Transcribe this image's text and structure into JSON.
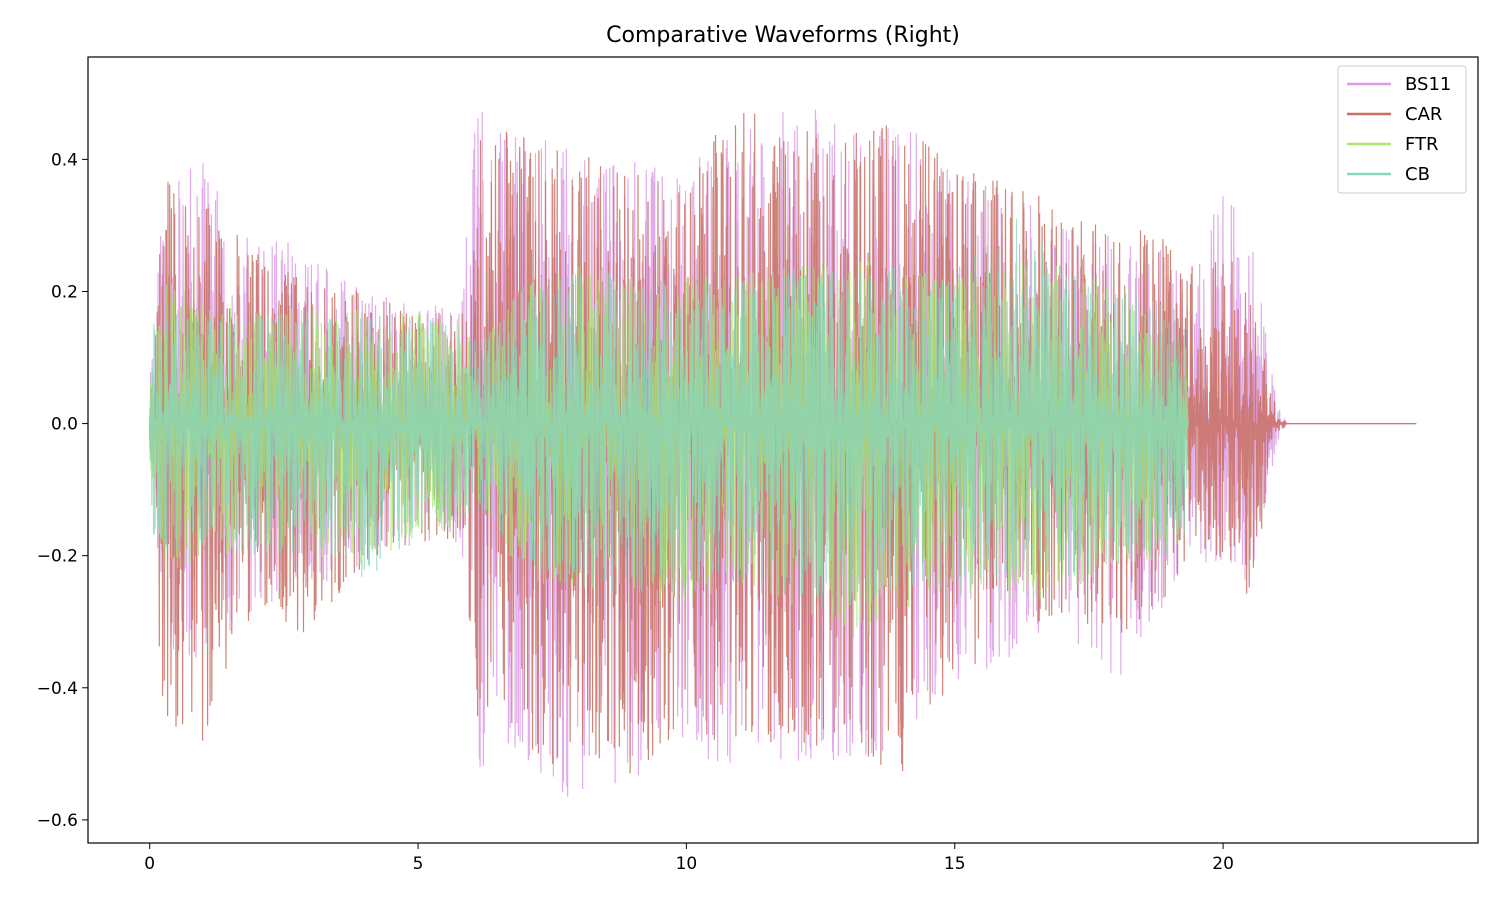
{
  "chart_data": {
    "type": "line",
    "title": "Comparative Waveforms (Right)",
    "xlabel": "",
    "ylabel": "",
    "xlim": [
      -1.15,
      24.75
    ],
    "ylim": [
      -0.635,
      0.555
    ],
    "x_ticks": [
      0,
      5,
      10,
      15,
      20
    ],
    "x_tick_labels": [
      "0",
      "5",
      "10",
      "15",
      "20"
    ],
    "y_ticks": [
      0.4,
      0.2,
      0.0,
      -0.2,
      -0.4,
      -0.6
    ],
    "y_tick_labels": [
      "0.4",
      "0.2",
      "0.0",
      "−0.2",
      "−0.4",
      "−0.6"
    ],
    "grid": false,
    "legend_position": "top-right",
    "series": [
      {
        "name": "BS11",
        "color": "#dd9ce8",
        "envelope_x": [
          0,
          0.3,
          1,
          2,
          3,
          4,
          5,
          5.8,
          6.1,
          7,
          7.5,
          8,
          9,
          10,
          11,
          12,
          13,
          14,
          15,
          16,
          17,
          18,
          19,
          19.35,
          20,
          20.5,
          21,
          21.2,
          23.6
        ],
        "envelope_pos": [
          0.08,
          0.42,
          0.4,
          0.3,
          0.26,
          0.2,
          0.18,
          0.18,
          0.49,
          0.44,
          0.43,
          0.42,
          0.4,
          0.42,
          0.44,
          0.5,
          0.44,
          0.47,
          0.38,
          0.35,
          0.32,
          0.28,
          0.26,
          0.2,
          0.36,
          0.3,
          0.03,
          0.0,
          0.0
        ],
        "envelope_neg": [
          -0.08,
          -0.35,
          -0.36,
          -0.28,
          -0.25,
          -0.22,
          -0.18,
          -0.18,
          -0.53,
          -0.52,
          -0.58,
          -0.56,
          -0.54,
          -0.5,
          -0.52,
          -0.52,
          -0.54,
          -0.48,
          -0.4,
          -0.36,
          -0.32,
          -0.4,
          -0.28,
          -0.2,
          -0.22,
          -0.25,
          -0.03,
          0.0,
          0.0
        ]
      },
      {
        "name": "CAR",
        "color": "#c87064",
        "envelope_x": [
          0,
          0.3,
          1,
          2,
          3,
          4,
          5,
          5.8,
          6.1,
          7,
          7.5,
          8,
          9,
          10,
          11,
          12,
          13,
          14,
          15,
          16,
          17,
          18,
          19,
          19.35,
          20,
          20.5,
          21,
          21.2,
          23.6
        ],
        "envelope_pos": [
          0.08,
          0.37,
          0.34,
          0.26,
          0.22,
          0.2,
          0.17,
          0.18,
          0.45,
          0.44,
          0.42,
          0.41,
          0.38,
          0.4,
          0.48,
          0.44,
          0.46,
          0.46,
          0.4,
          0.36,
          0.34,
          0.31,
          0.28,
          0.25,
          0.28,
          0.2,
          0.02,
          0.0,
          0.0
        ],
        "envelope_neg": [
          -0.08,
          -0.52,
          -0.48,
          -0.27,
          -0.33,
          -0.22,
          -0.18,
          -0.18,
          -0.48,
          -0.5,
          -0.52,
          -0.5,
          -0.54,
          -0.46,
          -0.5,
          -0.48,
          -0.5,
          -0.54,
          -0.38,
          -0.34,
          -0.3,
          -0.33,
          -0.26,
          -0.2,
          -0.22,
          -0.27,
          -0.02,
          0.0,
          0.0
        ]
      },
      {
        "name": "FTR",
        "color": "#a8e86e",
        "envelope_x": [
          0,
          0.3,
          1,
          2,
          3,
          4,
          5,
          5.8,
          6.1,
          7,
          8,
          9,
          10,
          11,
          12,
          13,
          14,
          15,
          16,
          17,
          18,
          19,
          19.35
        ],
        "envelope_pos": [
          0.06,
          0.22,
          0.18,
          0.17,
          0.18,
          0.17,
          0.17,
          0.16,
          0.12,
          0.22,
          0.24,
          0.24,
          0.22,
          0.23,
          0.24,
          0.25,
          0.24,
          0.22,
          0.26,
          0.24,
          0.21,
          0.18,
          0.16
        ],
        "envelope_neg": [
          -0.06,
          -0.24,
          -0.2,
          -0.2,
          -0.2,
          -0.22,
          -0.17,
          -0.16,
          -0.12,
          -0.24,
          -0.26,
          -0.26,
          -0.28,
          -0.24,
          -0.28,
          -0.36,
          -0.28,
          -0.26,
          -0.28,
          -0.26,
          -0.22,
          -0.2,
          -0.16
        ]
      },
      {
        "name": "CB",
        "color": "#88d6bc",
        "envelope_x": [
          0,
          0.3,
          1,
          2,
          3,
          4,
          5,
          5.8,
          6.1,
          7,
          8,
          9,
          10,
          11,
          12,
          13,
          14,
          15,
          16,
          17,
          18,
          19,
          19.35
        ],
        "envelope_pos": [
          0.14,
          0.19,
          0.17,
          0.17,
          0.18,
          0.17,
          0.17,
          0.16,
          0.12,
          0.22,
          0.23,
          0.23,
          0.22,
          0.22,
          0.24,
          0.24,
          0.24,
          0.22,
          0.34,
          0.24,
          0.21,
          0.18,
          0.16
        ],
        "envelope_neg": [
          -0.17,
          -0.2,
          -0.19,
          -0.2,
          -0.2,
          -0.24,
          -0.17,
          -0.16,
          -0.12,
          -0.22,
          -0.25,
          -0.26,
          -0.26,
          -0.24,
          -0.26,
          -0.3,
          -0.26,
          -0.26,
          -0.26,
          -0.24,
          -0.22,
          -0.2,
          -0.16
        ]
      }
    ]
  }
}
